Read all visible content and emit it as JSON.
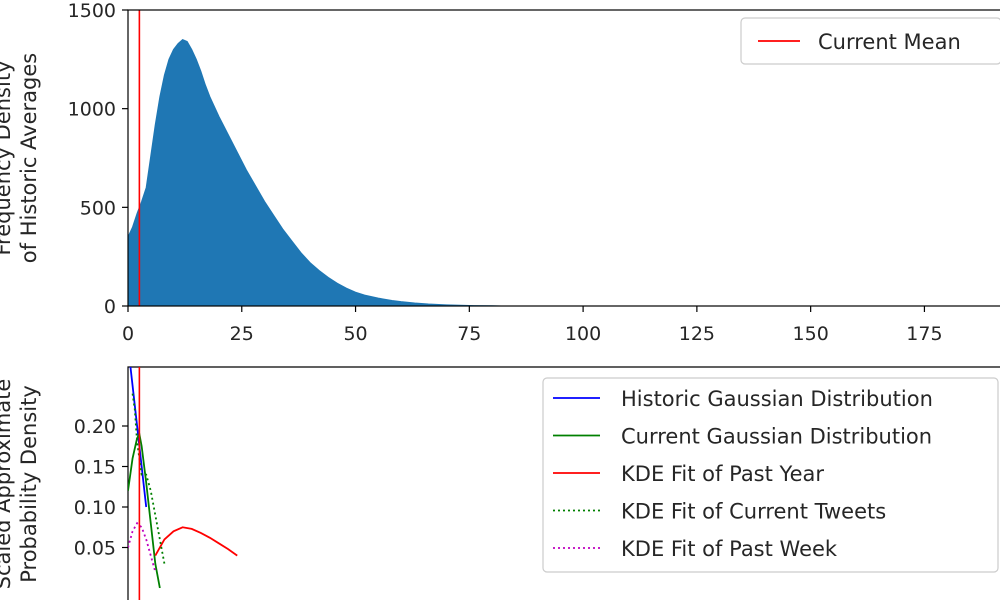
{
  "chart_data": [
    {
      "type": "bar",
      "title": "",
      "ylabel_lines": [
        "Frequency Density",
        "of Historic Averages"
      ],
      "xlim": [
        0,
        196
      ],
      "ylim": [
        0,
        1500
      ],
      "grid": false,
      "legend_position": "top-right",
      "x_ticks": [
        0,
        25,
        50,
        75,
        100,
        125,
        150,
        175
      ],
      "y_ticks": [
        0,
        500,
        1000,
        1500
      ],
      "series": [
        {
          "name": "Current Mean",
          "kind": "vline",
          "x": 2.5,
          "color": "#ff0000"
        }
      ],
      "histogram_color": "#1f77b4",
      "histogram_points": [
        [
          0,
          350
        ],
        [
          1,
          400
        ],
        [
          2,
          470
        ],
        [
          3,
          530
        ],
        [
          4,
          600
        ],
        [
          5,
          760
        ],
        [
          6,
          920
        ],
        [
          7,
          1060
        ],
        [
          8,
          1170
        ],
        [
          9,
          1250
        ],
        [
          10,
          1300
        ],
        [
          11,
          1330
        ],
        [
          12,
          1350
        ],
        [
          13,
          1340
        ],
        [
          14,
          1300
        ],
        [
          15,
          1250
        ],
        [
          16,
          1190
        ],
        [
          17,
          1120
        ],
        [
          18,
          1060
        ],
        [
          19,
          1010
        ],
        [
          20,
          960
        ],
        [
          22,
          870
        ],
        [
          24,
          780
        ],
        [
          26,
          690
        ],
        [
          28,
          610
        ],
        [
          30,
          530
        ],
        [
          32,
          460
        ],
        [
          34,
          390
        ],
        [
          36,
          330
        ],
        [
          38,
          270
        ],
        [
          40,
          220
        ],
        [
          42,
          180
        ],
        [
          44,
          145
        ],
        [
          46,
          115
        ],
        [
          48,
          90
        ],
        [
          50,
          70
        ],
        [
          52,
          55
        ],
        [
          55,
          40
        ],
        [
          58,
          28
        ],
        [
          60,
          22
        ],
        [
          63,
          15
        ],
        [
          66,
          10
        ],
        [
          70,
          6
        ],
        [
          73,
          4
        ],
        [
          76,
          2
        ],
        [
          80,
          1
        ],
        [
          82,
          0
        ]
      ]
    },
    {
      "type": "line",
      "title": "",
      "ylabel_lines": [
        "Scaled Approximate",
        "Probability Density"
      ],
      "xlim": [
        0,
        196
      ],
      "y_ticks": [
        0.05,
        0.1,
        0.15,
        0.2
      ],
      "y_tick_labels": [
        "0.05",
        "0.10",
        "0.15",
        "0.20"
      ],
      "grid": false,
      "legend_position": "top-right",
      "current_mean_x": 2.5,
      "series": [
        {
          "name": "Historic Gaussian Distribution",
          "color": "#0000ff",
          "style": "solid",
          "x": [
            0,
            1,
            2,
            3,
            4
          ],
          "y": [
            0.3,
            0.25,
            0.2,
            0.15,
            0.1
          ]
        },
        {
          "name": "Current Gaussian Distribution",
          "color": "#008000",
          "style": "solid",
          "x": [
            0,
            1,
            2,
            2.5,
            3,
            4,
            5,
            6,
            7
          ],
          "y": [
            0.12,
            0.16,
            0.185,
            0.19,
            0.175,
            0.13,
            0.08,
            0.03,
            0.0
          ]
        },
        {
          "name": "KDE Fit of Past Year",
          "color": "#ff0000",
          "style": "solid",
          "x": [
            6,
            8,
            10,
            12,
            14,
            16,
            18,
            20,
            22,
            24
          ],
          "y": [
            0.04,
            0.06,
            0.07,
            0.075,
            0.073,
            0.068,
            0.062,
            0.055,
            0.048,
            0.04
          ]
        },
        {
          "name": "KDE Fit of Current Tweets",
          "color": "#008000",
          "style": "dotted",
          "x": [
            1,
            1.5,
            2,
            3,
            4,
            5,
            6,
            7,
            8
          ],
          "y": [
            0.24,
            0.22,
            0.18,
            0.14,
            0.14,
            0.12,
            0.09,
            0.06,
            0.03
          ]
        },
        {
          "name": "KDE Fit of Past Week",
          "color": "#bf00bf",
          "style": "dotted",
          "x": [
            0,
            1,
            2,
            3,
            4,
            5,
            6
          ],
          "y": [
            0.05,
            0.07,
            0.08,
            0.075,
            0.06,
            0.04,
            0.02
          ]
        }
      ]
    }
  ]
}
